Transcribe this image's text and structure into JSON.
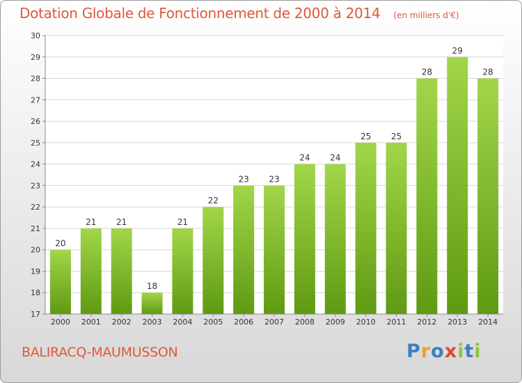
{
  "chart_data": {
    "type": "bar",
    "title": "Dotation Globale de Fonctionnement de 2000 à 2014",
    "subtitle": "(en milliers d'€)",
    "categories": [
      "2000",
      "2001",
      "2002",
      "2003",
      "2004",
      "2005",
      "2006",
      "2007",
      "2008",
      "2009",
      "2010",
      "2011",
      "2012",
      "2013",
      "2014"
    ],
    "values": [
      20,
      21,
      21,
      18,
      21,
      22,
      23,
      23,
      24,
      24,
      25,
      25,
      28,
      29,
      28
    ],
    "ylim": [
      17,
      30
    ],
    "yticks": [
      17,
      18,
      19,
      20,
      21,
      22,
      23,
      24,
      25,
      26,
      27,
      28,
      29,
      30
    ],
    "grid": true,
    "bar_color": "#7fbf2a"
  },
  "footer": {
    "commune": "BALIRACQ-MAUMUSSON",
    "logo_letters": [
      {
        "ch": "P",
        "color": "#3b7fc4"
      },
      {
        "ch": "r",
        "color": "#f0a020"
      },
      {
        "ch": "o",
        "color": "#3b7fc4"
      },
      {
        "ch": "x",
        "color": "#e04a2a"
      },
      {
        "ch": "i",
        "color": "#8cc63f"
      },
      {
        "ch": "t",
        "color": "#3b7fc4"
      },
      {
        "ch": "i",
        "color": "#8cc63f"
      }
    ]
  }
}
